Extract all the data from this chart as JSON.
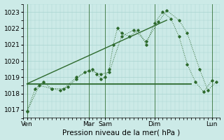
{
  "xlabel": "Pression niveau de la mer( hPa )",
  "bg_color": "#cceae7",
  "grid_color": "#aad4d0",
  "line_color": "#2d6a2d",
  "ylim": [
    1016.5,
    1023.5
  ],
  "yticks": [
    1017,
    1018,
    1019,
    1020,
    1021,
    1022,
    1023
  ],
  "xlim": [
    0,
    24
  ],
  "day_labels": [
    "Ven",
    "",
    "Mar",
    "Sam",
    "",
    "Dim",
    "",
    "Lun"
  ],
  "xtick_labels": [
    "Ven",
    "Mar",
    "Sam",
    "Dim",
    "Lun"
  ],
  "xtick_positions": [
    0.5,
    8,
    10,
    16,
    23
  ],
  "vlines": [
    0.5,
    8,
    10,
    16,
    23
  ],
  "series1": {
    "x": [
      0.5,
      1.5,
      2.5,
      3.5,
      4.5,
      5.5,
      6.5,
      7.5,
      8.5,
      9.0,
      9.5,
      10.0,
      10.5,
      11.0,
      11.5,
      12.0,
      13.0,
      14.0,
      15.0,
      16.0,
      17.0,
      18.0,
      19.0,
      20.0,
      21.0,
      22.0,
      23.0
    ],
    "y": [
      1016.9,
      1018.3,
      1018.7,
      1018.3,
      1018.2,
      1018.4,
      1018.9,
      1019.3,
      1019.5,
      1019.2,
      1018.9,
      1019.0,
      1019.5,
      1021.0,
      1022.0,
      1021.7,
      1021.5,
      1021.9,
      1021.0,
      1022.3,
      1023.0,
      1022.6,
      1021.5,
      1019.8,
      1018.7,
      1018.1,
      1018.8
    ]
  },
  "series2": {
    "x": [
      0.5,
      2.0,
      3.5,
      5.0,
      6.5,
      8.0,
      9.5,
      10.5,
      12.0,
      13.5,
      15.0,
      16.5,
      17.5,
      19.0,
      20.0,
      21.5,
      22.5,
      23.5
    ],
    "y": [
      1016.9,
      1018.5,
      1018.3,
      1018.3,
      1019.0,
      1019.4,
      1019.2,
      1019.3,
      1021.5,
      1021.9,
      1021.2,
      1022.4,
      1023.1,
      1022.5,
      1021.7,
      1019.5,
      1018.2,
      1018.7
    ]
  },
  "flat_line": {
    "x": [
      0.5,
      20.5
    ],
    "y": [
      1018.6,
      1018.6
    ]
  },
  "trend_line": {
    "x": [
      0.5,
      17.5
    ],
    "y": [
      1018.6,
      1022.5
    ]
  }
}
